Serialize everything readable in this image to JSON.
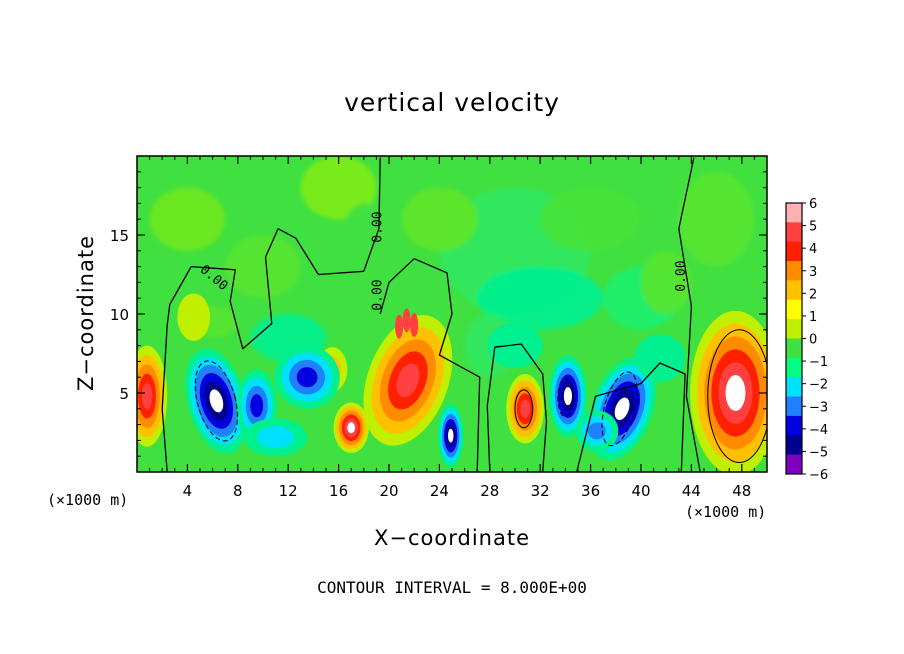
{
  "chart_data": {
    "type": "heatmap",
    "title": "vertical velocity",
    "xlabel": "X−coordinate",
    "ylabel": "Z−coordinate",
    "x_unit": "(×1000 m)",
    "note": "CONTOUR INTERVAL = 8.000E+00",
    "xlim": [
      0,
      50
    ],
    "ylim": [
      0,
      20
    ],
    "x_ticks": [
      4,
      8,
      12,
      16,
      20,
      24,
      28,
      32,
      36,
      40,
      44,
      48
    ],
    "y_ticks": [
      5,
      10,
      15
    ],
    "colorbar": {
      "levels": [
        6,
        5,
        4,
        3,
        2,
        1,
        0,
        -1,
        -2,
        -3,
        -4,
        -5,
        -6
      ],
      "labels": [
        "6",
        "5",
        "4",
        "3",
        "2",
        "1",
        "0",
        "−1",
        "−2",
        "−3",
        "−4",
        "−5",
        "−6"
      ],
      "colors": [
        "#ffb0b0",
        "#ff4040",
        "#ff2000",
        "#ff8c00",
        "#ffc000",
        "#ffff00",
        "#c0f000",
        "#40e040",
        "#00ff80",
        "#00e0ff",
        "#2080ff",
        "#0000e0",
        "#000090",
        "#8000c0"
      ]
    },
    "contour_labels": [
      "0.00",
      "0.00",
      "0.00",
      "0.00"
    ],
    "features": [
      {
        "x": 6,
        "z": 5,
        "sign": "-",
        "strength": 9
      },
      {
        "x": 9,
        "z": 4,
        "sign": "-",
        "strength": 4
      },
      {
        "x": 14,
        "z": 6.5,
        "sign": "-",
        "strength": 4
      },
      {
        "x": 17,
        "z": 3,
        "sign": "+",
        "strength": 8
      },
      {
        "x": 21,
        "z": 6,
        "sign": "+",
        "strength": 7
      },
      {
        "x": 25,
        "z": 2.5,
        "sign": "-",
        "strength": 8
      },
      {
        "x": 31,
        "z": 4,
        "sign": "+",
        "strength": 7
      },
      {
        "x": 34,
        "z": 4.5,
        "sign": "-",
        "strength": 8
      },
      {
        "x": 38.5,
        "z": 4,
        "sign": "-",
        "strength": 10
      },
      {
        "x": 47.5,
        "z": 5.5,
        "sign": "+",
        "strength": 12
      }
    ]
  },
  "text": {
    "title": "vertical velocity",
    "xlabel": "X−coordinate",
    "ylabel": "Z−coordinate",
    "note": "CONTOUR INTERVAL = 8.000E+00",
    "unit_left": "(×1000 m)",
    "unit_right": "(×1000 m)"
  }
}
